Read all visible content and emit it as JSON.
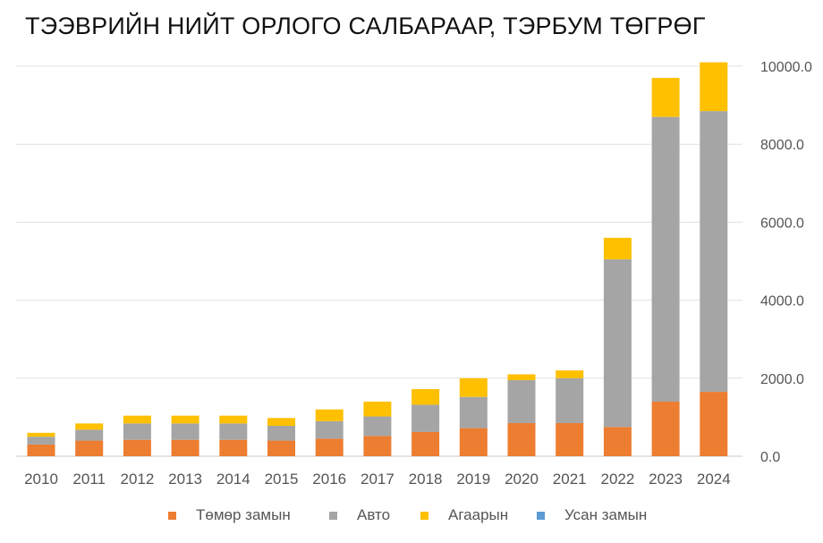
{
  "title": "ТЭЭВРИЙН НИЙТ ОРЛОГО САЛБАРААР, ТЭРБУМ ТӨГРӨГ",
  "chart_data": {
    "type": "bar",
    "stacked": true,
    "categories": [
      "2010",
      "2011",
      "2012",
      "2013",
      "2014",
      "2015",
      "2016",
      "2017",
      "2018",
      "2019",
      "2020",
      "2021",
      "2022",
      "2023",
      "2024"
    ],
    "series": [
      {
        "name": "Төмөр замын",
        "color": "#ED7D31",
        "values": [
          300,
          400,
          420,
          420,
          420,
          400,
          450,
          520,
          620,
          720,
          850,
          850,
          750,
          1400,
          1650
        ]
      },
      {
        "name": "Авто",
        "color": "#A5A5A5",
        "values": [
          200,
          280,
          420,
          420,
          420,
          380,
          450,
          500,
          700,
          800,
          1100,
          1150,
          4300,
          7300,
          7200
        ]
      },
      {
        "name": "Агаарын",
        "color": "#FFC000",
        "values": [
          100,
          160,
          200,
          200,
          200,
          200,
          300,
          380,
          400,
          480,
          150,
          200,
          550,
          1000,
          1250
        ]
      },
      {
        "name": "Усан замын",
        "color": "#5B9BD5",
        "values": [
          0,
          0,
          0,
          0,
          0,
          0,
          0,
          0,
          0,
          0,
          0,
          0,
          0,
          0,
          0
        ]
      }
    ],
    "y_ticks": [
      "0.0",
      "2000.0",
      "4000.0",
      "6000.0",
      "8000.0",
      "10000.0"
    ],
    "ylim": [
      0,
      10000
    ],
    "y_axis_side": "right",
    "grid": true,
    "legend_position": "bottom"
  }
}
